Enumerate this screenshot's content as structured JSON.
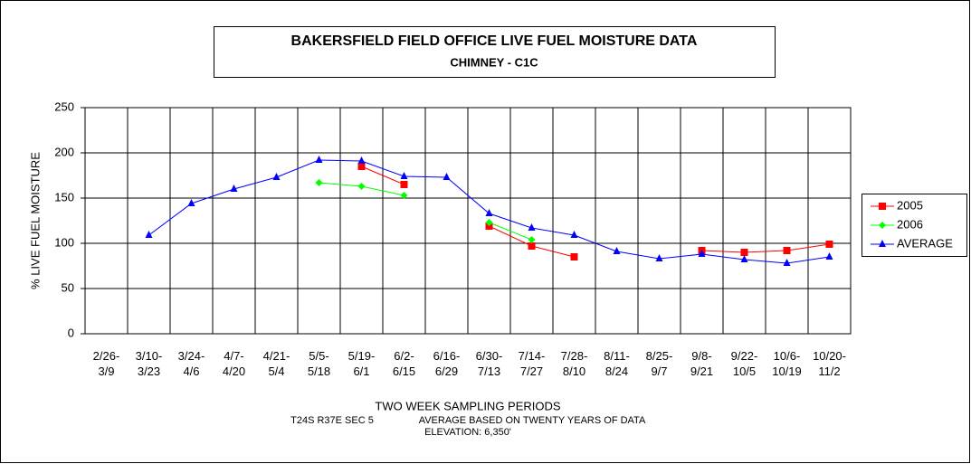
{
  "chart_data": {
    "type": "line",
    "title": "BAKERSFIELD FIELD OFFICE  LIVE FUEL MOISTURE DATA",
    "subtitle": "CHIMNEY - C1C",
    "x_label": "TWO WEEK SAMPLING PERIODS",
    "y_label": "% LIVE FUEL MOISTURE",
    "notes": [
      "T24S R37E SEC 5",
      "AVERAGE BASED ON TWENTY YEARS OF DATA",
      "ELEVATION: 6,350'"
    ],
    "categories": [
      "2/26-\n3/9",
      "3/10-\n3/23",
      "3/24-\n4/6",
      "4/7-\n4/20",
      "4/21-\n5/4",
      "5/5-\n5/18",
      "5/19-\n6/1",
      "6/2-\n6/15",
      "6/16-\n6/29",
      "6/30-\n7/13",
      "7/14-\n7/27",
      "7/28-\n8/10",
      "8/11-\n8/24",
      "8/25-\n9/7",
      "9/8-\n9/21",
      "9/22-\n10/5",
      "10/6-\n10/19",
      "10/20-\n11/2"
    ],
    "series": [
      {
        "name": "2005",
        "color": "#ff0000",
        "marker": "square",
        "values": [
          null,
          null,
          null,
          null,
          null,
          null,
          185,
          165,
          null,
          119,
          97,
          85,
          null,
          null,
          92,
          90,
          92,
          99
        ]
      },
      {
        "name": "2006",
        "color": "#00ff00",
        "marker": "diamond",
        "values": [
          null,
          null,
          null,
          null,
          null,
          167,
          163,
          153,
          null,
          123,
          104,
          null,
          null,
          null,
          null,
          null,
          null,
          null
        ]
      },
      {
        "name": "AVERAGE",
        "color": "#0000ff",
        "marker": "triangle",
        "values": [
          null,
          109,
          144,
          160,
          173,
          192,
          191,
          174,
          173,
          133,
          117,
          109,
          91,
          83,
          88,
          82,
          78,
          85
        ]
      }
    ],
    "ylim": [
      0,
      250
    ],
    "yticks": [
      0,
      50,
      100,
      150,
      200,
      250
    ],
    "grid": true,
    "legend": "right"
  }
}
